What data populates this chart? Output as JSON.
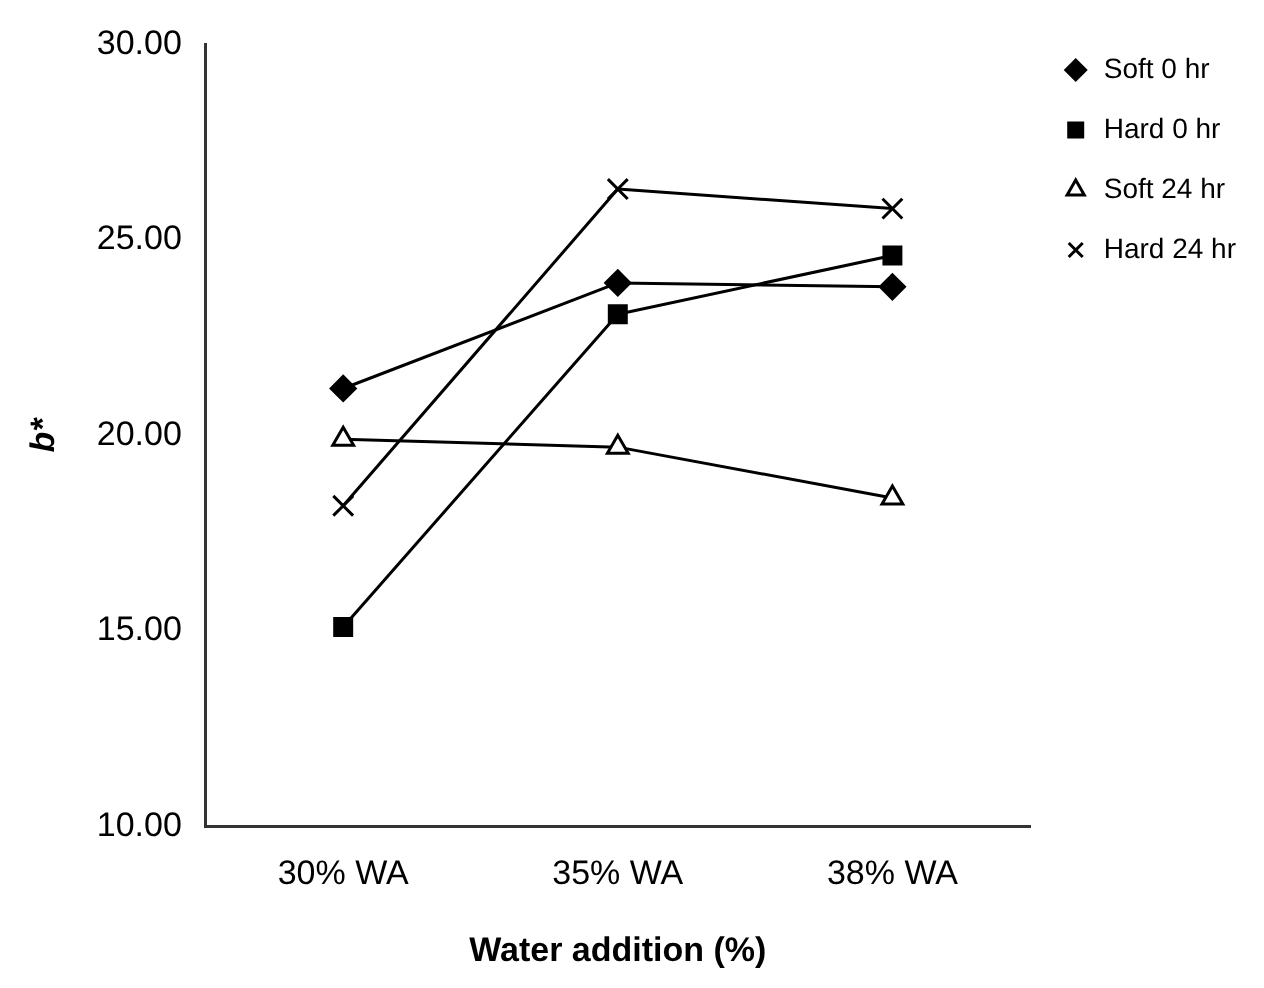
{
  "chart_data": {
    "type": "line",
    "xlabel": "Water addition (%)",
    "ylabel": "b*",
    "categories": [
      "30% WA",
      "35% WA",
      "38% WA"
    ],
    "series": [
      {
        "name": "Soft 0 hr",
        "color": "#000000",
        "marker": "diamond",
        "values": [
          21.2,
          23.9,
          23.8
        ]
      },
      {
        "name": "Hard 0 hr",
        "color": "#000000",
        "marker": "square",
        "values": [
          15.1,
          23.1,
          24.6
        ]
      },
      {
        "name": "Soft 24 hr",
        "color": "#000000",
        "marker": "triangle",
        "values": [
          19.9,
          19.7,
          18.4
        ]
      },
      {
        "name": "Hard 24 hr",
        "color": "#000000",
        "marker": "cross",
        "values": [
          18.2,
          26.3,
          25.8
        ]
      }
    ],
    "ylim": [
      10,
      30
    ],
    "yticks": [
      {
        "value": 10,
        "label": "10.00"
      },
      {
        "value": 15,
        "label": "15.00"
      },
      {
        "value": 20,
        "label": "20.00"
      },
      {
        "value": 25,
        "label": "25.00"
      },
      {
        "value": 30,
        "label": "30.00"
      }
    ],
    "grid": false,
    "legend": "top right",
    "line_style": "solid"
  }
}
